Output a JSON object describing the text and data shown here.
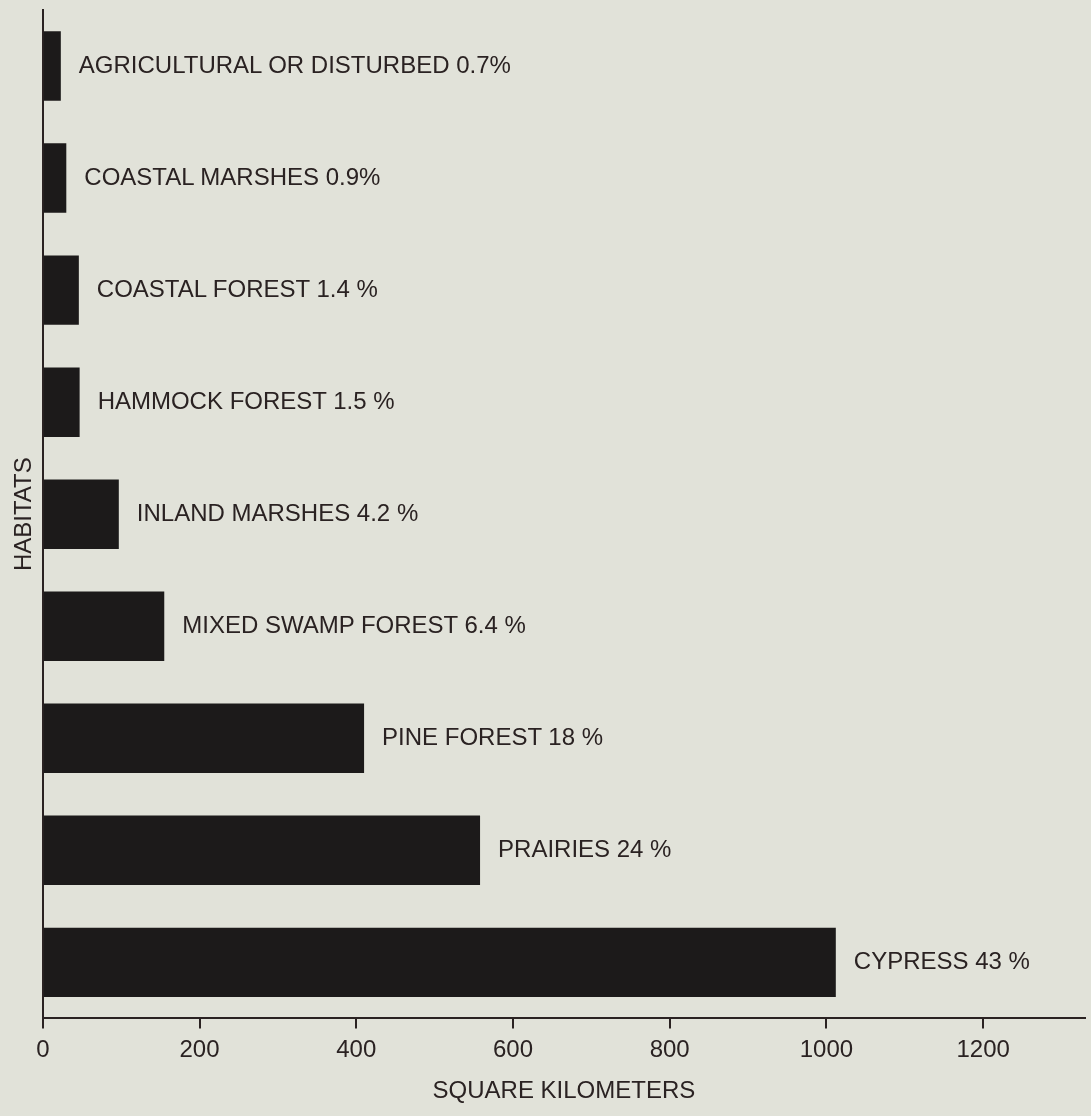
{
  "chart_data": {
    "type": "bar",
    "orientation": "horizontal",
    "xlabel": "SQUARE KILOMETERS",
    "ylabel": "HABITATS",
    "categories": [
      "AGRICULTURAL OR DISTURBED 0.7%",
      "COASTAL MARSHES 0.9%",
      "COASTAL FOREST 1.4 %",
      "HAMMOCK FOREST 1.5 %",
      "INLAND MARSHES 4.2 %",
      "MIXED SWAMP FOREST 6.4 %",
      "PINE FOREST 18 %",
      "PRAIRIES 24 %",
      "CYPRESS 43 %"
    ],
    "values": [
      23,
      30,
      46,
      47,
      97,
      155,
      410,
      558,
      1012
    ],
    "color": "#1c1a1a",
    "xlim": [
      0,
      1330
    ],
    "xticks": [
      0,
      200,
      400,
      600,
      800,
      1000,
      1200
    ],
    "grid": false,
    "legend": false,
    "tick_labels": "x"
  }
}
